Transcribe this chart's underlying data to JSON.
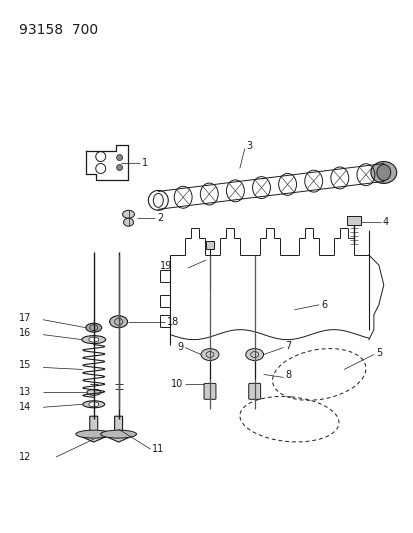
{
  "title": "93158  700",
  "background_color": "#ffffff",
  "line_color": "#1a1a1a",
  "fig_width": 4.14,
  "fig_height": 5.33,
  "dpi": 100
}
